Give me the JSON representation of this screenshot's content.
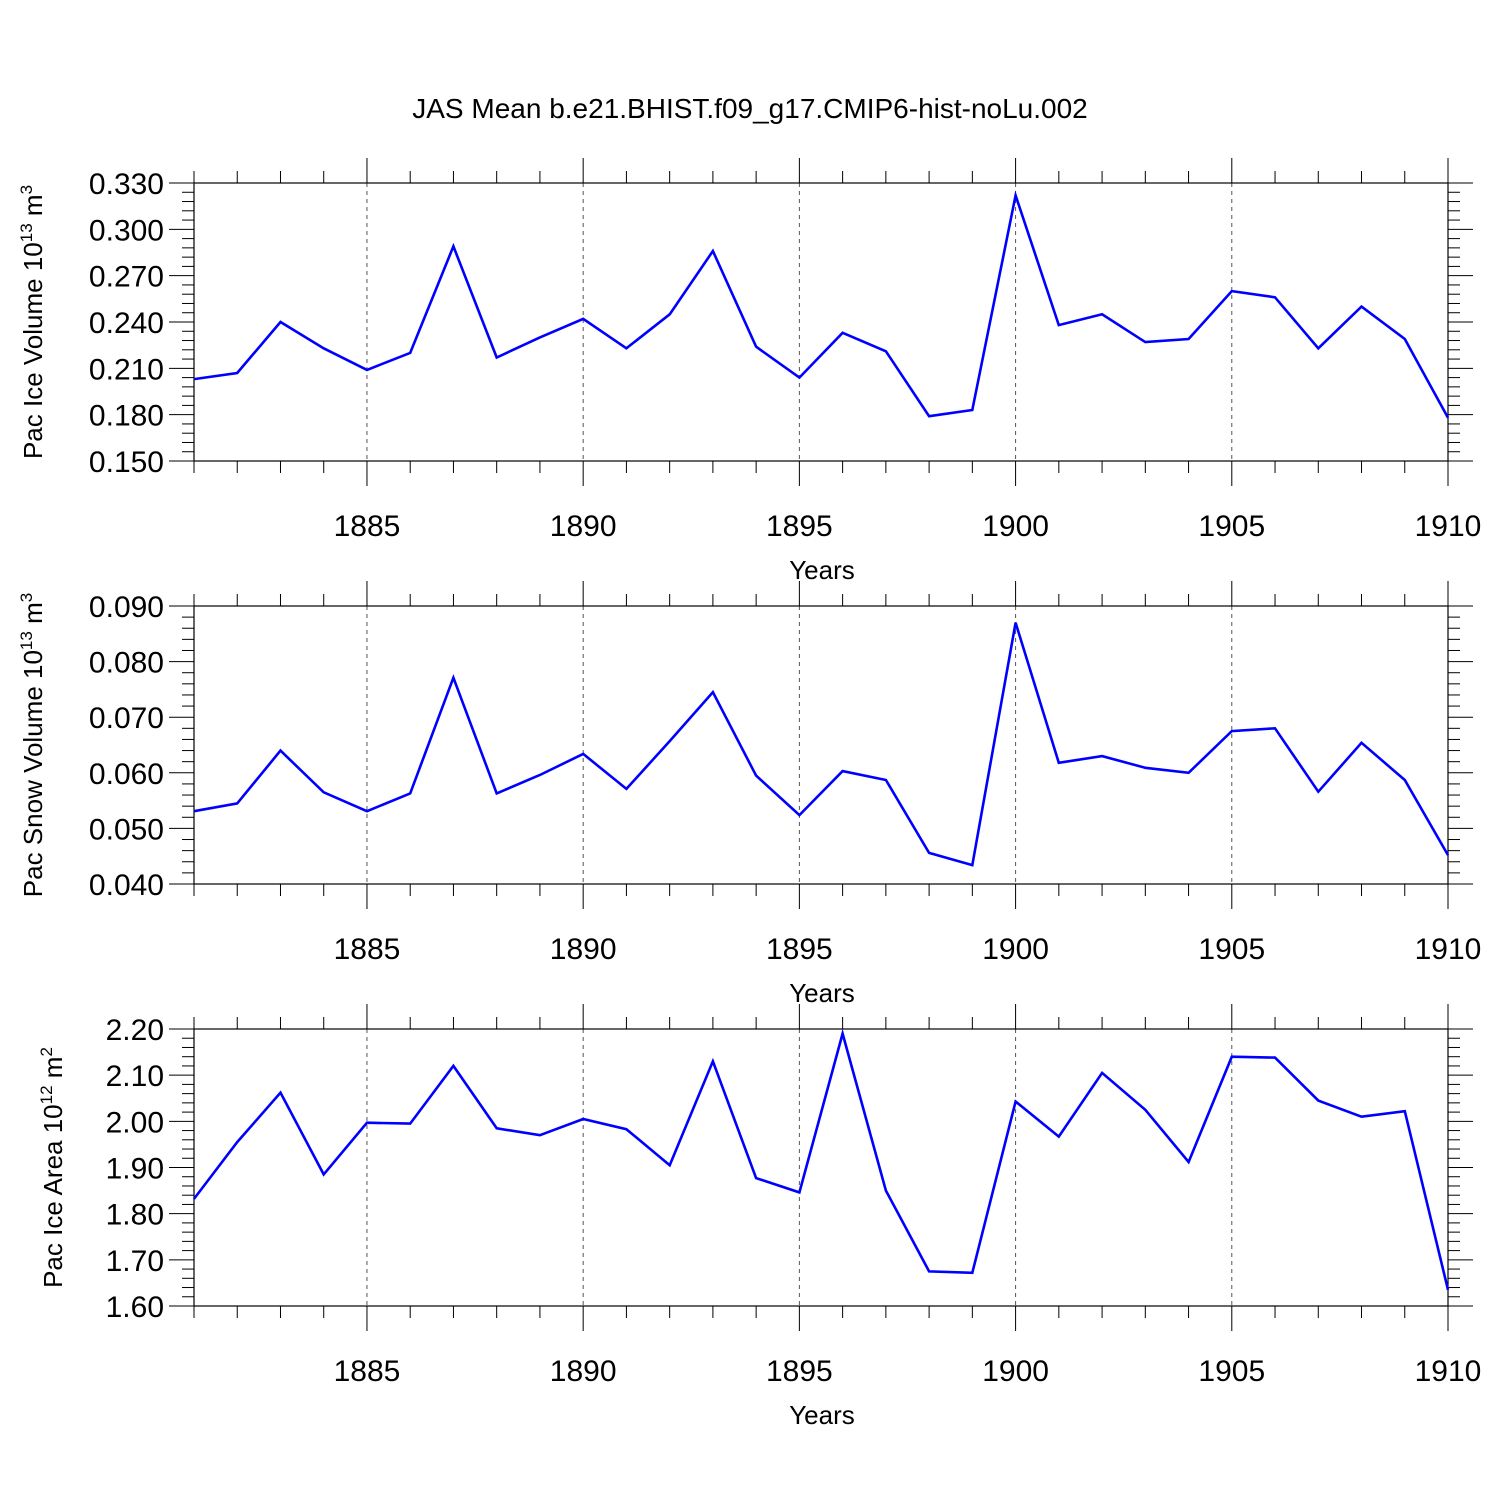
{
  "title": "JAS Mean b.e21.BHIST.f09_g17.CMIP6-hist-noLu.002",
  "colors": {
    "line": "#0000ff",
    "axis": "#000000",
    "grid": "#555555"
  },
  "chart_data": [
    {
      "type": "line",
      "ylabel": {
        "text": "Pac Ice Volume 10",
        "exp": "13",
        "unit": " m",
        "unit_exp": "3"
      },
      "xlabel": "Years",
      "xlim": [
        1881,
        1910
      ],
      "ylim": [
        0.15,
        0.33
      ],
      "yticks": [
        "0.150",
        "0.180",
        "0.210",
        "0.240",
        "0.270",
        "0.300",
        "0.330"
      ],
      "xticks": [
        "1885",
        "1890",
        "1895",
        "1900",
        "1905",
        "1910"
      ],
      "grid": "vertical dashed at major x ticks",
      "x": [
        1881,
        1882,
        1883,
        1884,
        1885,
        1886,
        1887,
        1888,
        1889,
        1890,
        1891,
        1892,
        1893,
        1894,
        1895,
        1896,
        1897,
        1898,
        1899,
        1900,
        1901,
        1902,
        1903,
        1904,
        1905,
        1906,
        1907,
        1908,
        1909,
        1910
      ],
      "values": [
        0.203,
        0.207,
        0.24,
        0.223,
        0.209,
        0.22,
        0.289,
        0.217,
        0.23,
        0.242,
        0.223,
        0.245,
        0.286,
        0.224,
        0.204,
        0.233,
        0.221,
        0.179,
        0.183,
        0.322,
        0.238,
        0.245,
        0.227,
        0.229,
        0.26,
        0.256,
        0.223,
        0.25,
        0.229,
        0.178
      ]
    },
    {
      "type": "line",
      "ylabel": {
        "text": "Pac Snow Volume 10",
        "exp": "13",
        "unit": " m",
        "unit_exp": "3"
      },
      "xlabel": "Years",
      "xlim": [
        1881,
        1910
      ],
      "ylim": [
        0.04,
        0.09
      ],
      "yticks": [
        "0.040",
        "0.050",
        "0.060",
        "0.070",
        "0.080",
        "0.090"
      ],
      "xticks": [
        "1885",
        "1890",
        "1895",
        "1900",
        "1905",
        "1910"
      ],
      "grid": "vertical dashed at major x ticks",
      "x": [
        1881,
        1882,
        1883,
        1884,
        1885,
        1886,
        1887,
        1888,
        1889,
        1890,
        1891,
        1892,
        1893,
        1894,
        1895,
        1896,
        1897,
        1898,
        1899,
        1900,
        1901,
        1902,
        1903,
        1904,
        1905,
        1906,
        1907,
        1908,
        1909,
        1910
      ],
      "values": [
        0.0531,
        0.0545,
        0.064,
        0.0565,
        0.0531,
        0.0563,
        0.0771,
        0.0563,
        0.0596,
        0.0634,
        0.0571,
        0.0657,
        0.0745,
        0.0595,
        0.0524,
        0.0603,
        0.0587,
        0.0456,
        0.0434,
        0.087,
        0.0618,
        0.063,
        0.0609,
        0.06,
        0.0675,
        0.068,
        0.0566,
        0.0654,
        0.0587,
        0.0452
      ]
    },
    {
      "type": "line",
      "ylabel": {
        "text": "Pac Ice Area 10",
        "exp": "12",
        "unit": " m",
        "unit_exp": "2"
      },
      "xlabel": "Years",
      "xlim": [
        1881,
        1910
      ],
      "ylim": [
        1.6,
        2.2
      ],
      "yticks": [
        "1.60",
        "1.70",
        "1.80",
        "1.90",
        "2.00",
        "2.10",
        "2.20"
      ],
      "xticks": [
        "1885",
        "1890",
        "1895",
        "1900",
        "1905",
        "1910"
      ],
      "grid": "vertical dashed at major x ticks",
      "x": [
        1881,
        1882,
        1883,
        1884,
        1885,
        1886,
        1887,
        1888,
        1889,
        1890,
        1891,
        1892,
        1893,
        1894,
        1895,
        1896,
        1897,
        1898,
        1899,
        1900,
        1901,
        1902,
        1903,
        1904,
        1905,
        1906,
        1907,
        1908,
        1909,
        1910
      ],
      "values": [
        1.832,
        1.955,
        2.062,
        1.885,
        1.997,
        1.995,
        2.12,
        1.985,
        1.97,
        2.005,
        1.983,
        1.905,
        2.13,
        1.877,
        1.846,
        2.19,
        1.85,
        1.675,
        1.672,
        2.043,
        1.967,
        2.105,
        2.025,
        1.912,
        2.14,
        2.138,
        2.045,
        2.01,
        2.022,
        1.635
      ]
    }
  ]
}
